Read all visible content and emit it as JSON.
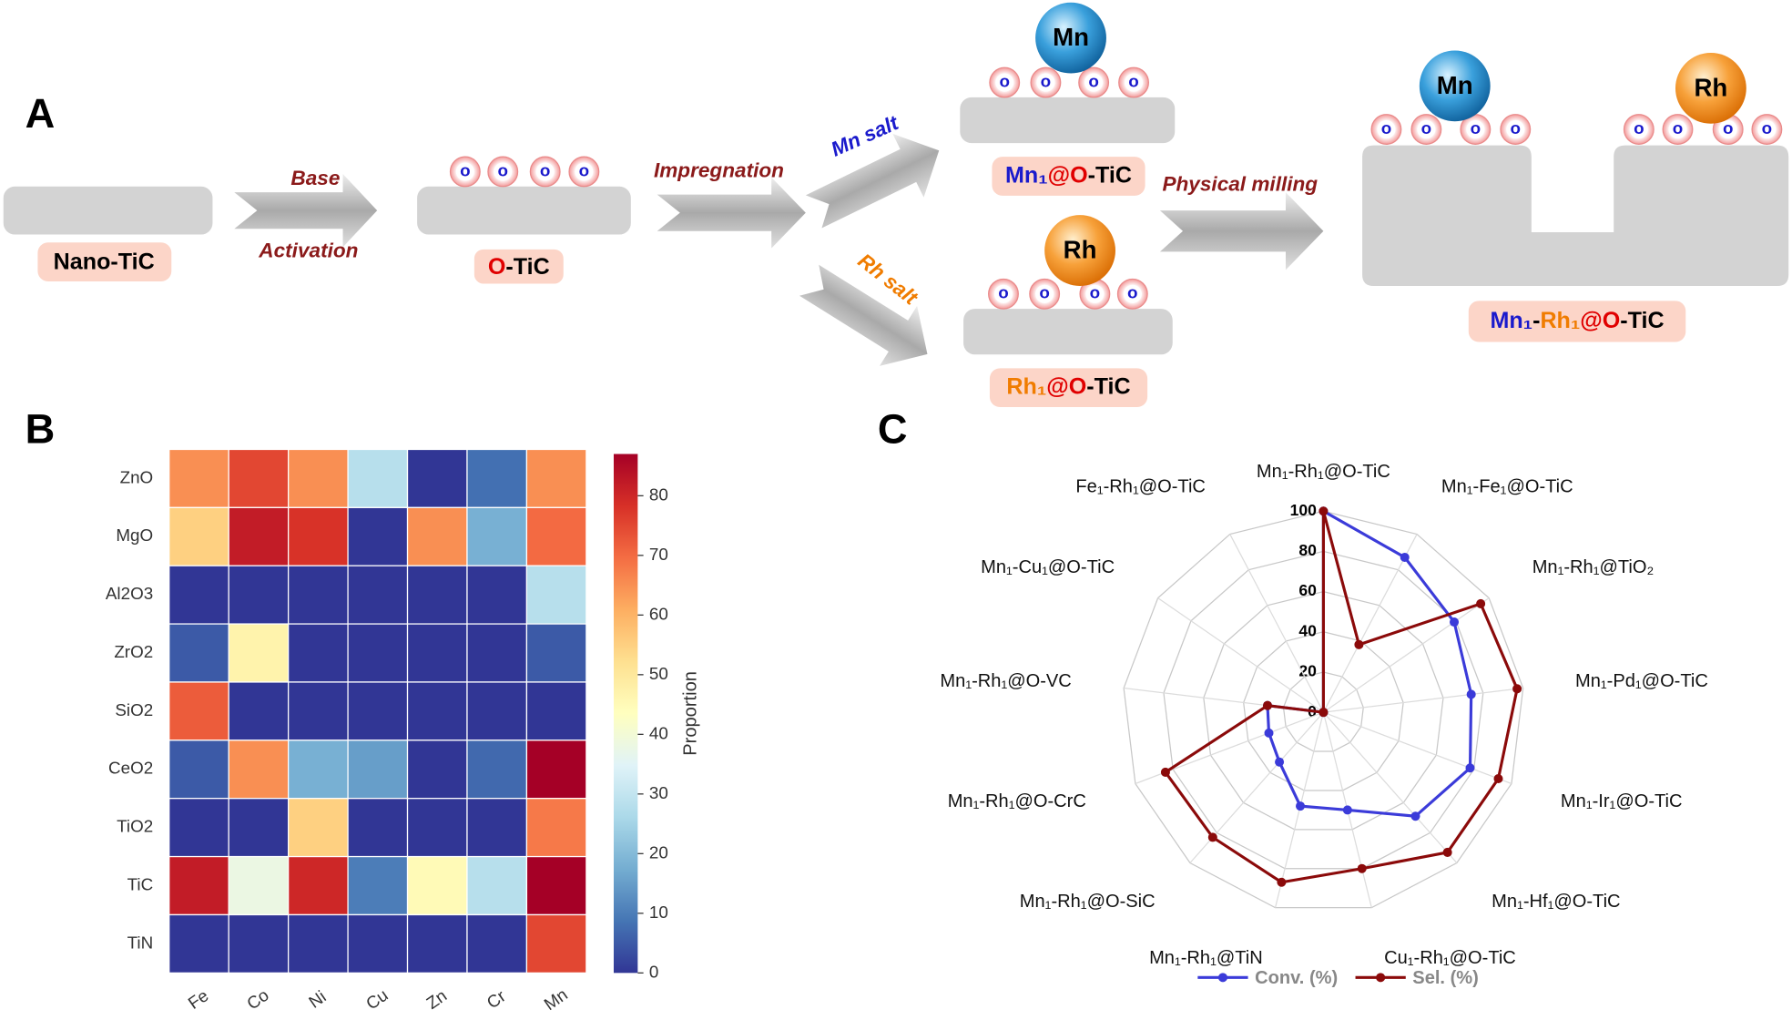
{
  "panel_labels": [
    "A",
    "B",
    "C"
  ],
  "scheme": {
    "nano_tic": "Nano-TiC",
    "base": "Base",
    "activation": "Activation",
    "o_tic": [
      "O",
      "-TiC"
    ],
    "atom": "o",
    "impregnation": "Impregnation",
    "mn_salt": "Mn salt",
    "rh_salt": "Rh salt",
    "mn": "Mn",
    "rh": "Rh",
    "mn_o_tic": [
      "Mn₁",
      "@O",
      "-TiC"
    ],
    "rh_o_tic": [
      "Rh₁",
      "@O",
      "-TiC"
    ],
    "milling": "Physical milling",
    "product": [
      "Mn₁",
      "-",
      "Rh₁",
      "@O",
      "-TiC"
    ]
  },
  "chart_data": [
    {
      "type": "heatmap",
      "categories": [
        "Fe",
        "Co",
        "Ni",
        "Cu",
        "Zn",
        "Cr",
        "Mn"
      ],
      "rows": [
        "ZnO",
        "MgO",
        "Al2O3",
        "ZrO2",
        "SiO2",
        "CeO2",
        "TiO2",
        "TiC",
        "TiN"
      ],
      "values": [
        [
          65,
          75,
          65,
          28,
          0,
          8,
          65
        ],
        [
          55,
          82,
          78,
          0,
          65,
          18,
          70
        ],
        [
          0,
          0,
          0,
          0,
          0,
          0,
          28
        ],
        [
          5,
          47,
          0,
          0,
          0,
          0,
          5
        ],
        [
          72,
          0,
          0,
          0,
          0,
          0,
          0
        ],
        [
          5,
          65,
          18,
          15,
          0,
          7,
          87
        ],
        [
          0,
          0,
          55,
          0,
          0,
          0,
          68
        ],
        [
          82,
          38,
          80,
          10,
          45,
          28,
          87
        ],
        [
          0,
          0,
          0,
          0,
          0,
          0,
          75
        ]
      ],
      "colorbar_label": "Proportion",
      "clim": [
        0,
        87
      ],
      "cticks": [
        0,
        10,
        20,
        30,
        40,
        50,
        60,
        70,
        80
      ],
      "colorscale": [
        "#313695",
        "#4575b4",
        "#74add1",
        "#abd9e9",
        "#e0f3f8",
        "#ffffbf",
        "#fee090",
        "#fdae61",
        "#f46d43",
        "#d73027",
        "#a50026"
      ]
    },
    {
      "type": "radar",
      "categories": [
        "Mn₁-Rh₁@O-TiC",
        "Mn₁-Fe₁@O-TiC",
        "Mn₁-Rh₁@TiO₂",
        "Mn₁-Pd₁@O-TiC",
        "Mn₁-Ir₁@O-TiC",
        "Mn₁-Hf₁@O-TiC",
        "Cu₁-Rh₁@O-TiC",
        "Mn₁-Rh₁@TiN",
        "Mn₁-Rh₁@O-SiC",
        "Mn₁-Rh₁@O-CrC",
        "Mn₁-Rh₁@O-VC",
        "Mn₁-Cu₁@O-TiC",
        "Fe₁-Rh₁@O-TiC"
      ],
      "series": [
        {
          "name": "Conv. (%)",
          "color": "#3b3bd9",
          "values": [
            100,
            87,
            79,
            74,
            78,
            69,
            50,
            48,
            33,
            29,
            28,
            0,
            0
          ]
        },
        {
          "name": "Sel. (%)",
          "color": "#8b0a0a",
          "values": [
            100,
            38,
            95,
            97,
            93,
            93,
            80,
            87,
            83,
            84,
            28,
            0,
            0
          ]
        }
      ],
      "rlim": [
        0,
        100
      ],
      "rticks": [
        0,
        20,
        40,
        60,
        80,
        100
      ]
    }
  ]
}
